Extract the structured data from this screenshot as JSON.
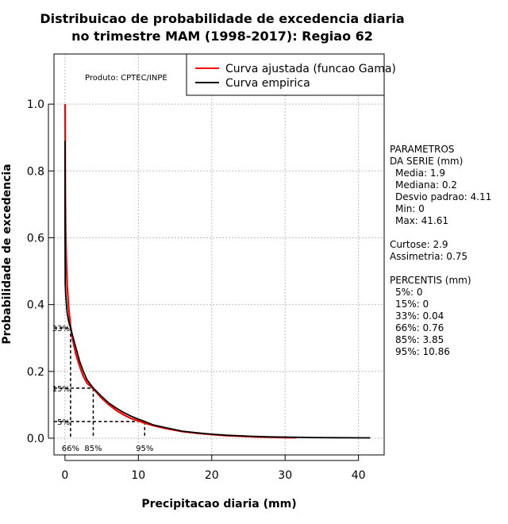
{
  "chart_data": {
    "type": "line",
    "title": "Distribuicao de probabilidade de excedencia diaria",
    "subtitle": "no trimestre MAM (1998-2017): Regiao 62",
    "xlabel": "Precipitacao diaria (mm)",
    "ylabel": "Probabilidade de excedencia",
    "xlim": [
      -1.5,
      43.5
    ],
    "ylim": [
      -0.05,
      1.15
    ],
    "xticks": [
      0,
      10,
      20,
      30,
      40
    ],
    "yticks": [
      0.0,
      0.2,
      0.4,
      0.6,
      0.8,
      1.0
    ],
    "xtick_labels": [
      "0",
      "10",
      "20",
      "30",
      "40"
    ],
    "ytick_labels": [
      "0.0",
      "0.2",
      "0.4",
      "0.6",
      "0.8",
      "1.0"
    ],
    "grid": true,
    "legend_position": "top-right",
    "product_note": "Produto: CPTEC/INPE",
    "series": [
      {
        "name": "Curva ajustada (funcao Gama)",
        "color": "#ff0000",
        "x": [
          0.0,
          0.02,
          0.05,
          0.1,
          0.2,
          0.3,
          0.5,
          0.76,
          1.0,
          1.5,
          2.0,
          2.5,
          3.0,
          3.85,
          5.0,
          6.0,
          7.0,
          8.0,
          9.0,
          10.86,
          12.0,
          14.0,
          16.0,
          18.0,
          20.0,
          22.0,
          24.0,
          26.0,
          28.0,
          30.0,
          31.5
        ],
        "y": [
          1.0,
          0.88,
          0.74,
          0.62,
          0.52,
          0.46,
          0.39,
          0.335,
          0.3,
          0.25,
          0.215,
          0.185,
          0.165,
          0.148,
          0.12,
          0.1,
          0.083,
          0.07,
          0.059,
          0.045,
          0.038,
          0.028,
          0.02,
          0.015,
          0.011,
          0.008,
          0.006,
          0.004,
          0.003,
          0.002,
          0.0015
        ]
      },
      {
        "name": "Curva empirica",
        "color": "#000000",
        "x": [
          0.0,
          0.0,
          0.01,
          0.02,
          0.04,
          0.1,
          0.2,
          0.3,
          0.5,
          0.76,
          1.0,
          1.5,
          2.0,
          2.5,
          3.0,
          3.85,
          5.0,
          6.0,
          7.0,
          8.0,
          9.0,
          10.0,
          10.86,
          12.0,
          14.0,
          16.0,
          18.0,
          20.0,
          22.0,
          25.0,
          28.0,
          31.0,
          34.0,
          37.0,
          41.61
        ],
        "y": [
          0.89,
          0.65,
          0.58,
          0.52,
          0.46,
          0.43,
          0.4,
          0.375,
          0.35,
          0.33,
          0.31,
          0.27,
          0.23,
          0.2,
          0.175,
          0.15,
          0.125,
          0.105,
          0.09,
          0.077,
          0.066,
          0.057,
          0.05,
          0.04,
          0.03,
          0.021,
          0.016,
          0.012,
          0.009,
          0.006,
          0.004,
          0.003,
          0.002,
          0.0015,
          0.001
        ]
      }
    ],
    "percentile_markers": [
      {
        "prob": 0.33,
        "prob_label": "33%",
        "x": 0.76,
        "x_label": "66%"
      },
      {
        "prob": 0.15,
        "prob_label": "15%",
        "x": 3.85,
        "x_label": "85%"
      },
      {
        "prob": 0.05,
        "prob_label": "5%",
        "x": 10.86,
        "x_label": "95%"
      }
    ]
  },
  "stats_panel": {
    "heading1": "PARAMETROS",
    "heading2": "DA SERIE (mm)",
    "media": "Media: 1.9",
    "mediana": "Mediana: 0.2",
    "desvio": "Desvio padrao: 4.11",
    "min": "Min: 0",
    "max": "Max: 41.61",
    "curtose": "Curtose: 2.9",
    "assimetria": "Assimetria: 0.75",
    "percentis_heading": "PERCENTIS (mm)",
    "p5": "5%: 0",
    "p15": "15%: 0",
    "p33": "33%: 0.04",
    "p66": "66%: 0.76",
    "p85": "85%: 3.85",
    "p95": "95%: 10.86"
  }
}
